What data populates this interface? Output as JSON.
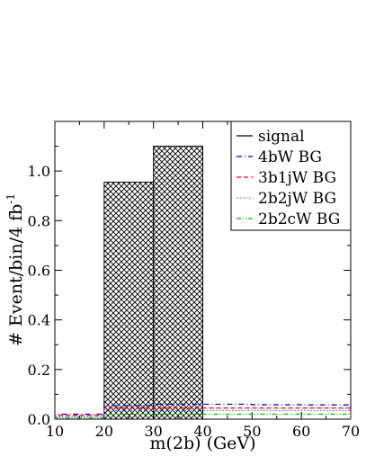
{
  "chart_data": {
    "type": "bar",
    "title": "",
    "xlabel": "m(2b) (GeV)",
    "ylabel_main": "# Event/bin/4 fb",
    "ylabel_sup": "-1",
    "xlim": [
      10,
      70
    ],
    "ylim": [
      0,
      1.2
    ],
    "xticks": [
      10,
      20,
      30,
      40,
      50,
      60,
      70
    ],
    "xtick_labels": [
      "10",
      "20",
      "30",
      "40",
      "50",
      "60",
      "70"
    ],
    "yticks": [
      0,
      0.2,
      0.4,
      0.6,
      0.8,
      1.0
    ],
    "ytick_labels": [
      "0.0",
      "0.2",
      "0.4",
      "0.6",
      "0.8",
      "1.0"
    ],
    "bin_edges": [
      10,
      20,
      30,
      40,
      50,
      60,
      70
    ],
    "grid": false,
    "legend_position": "top-right",
    "series": [
      {
        "name": "signal",
        "color": "#000000",
        "style": "solid-hatched",
        "values": [
          0.0,
          0.955,
          1.1,
          0.0,
          0.0,
          0.0
        ]
      },
      {
        "name": "4bW BG",
        "color": "#0000cc",
        "style": "dash-dot",
        "values": [
          0.02,
          0.055,
          0.06,
          0.06,
          0.058,
          0.057
        ]
      },
      {
        "name": "3b1jW BG",
        "color": "#ff0000",
        "style": "dashed",
        "values": [
          0.015,
          0.045,
          0.045,
          0.045,
          0.045,
          0.045
        ]
      },
      {
        "name": "2b2jW BG",
        "color": "#6666ff",
        "style": "dotted",
        "values": [
          0.01,
          0.035,
          0.035,
          0.035,
          0.035,
          0.035
        ]
      },
      {
        "name": "2b2cW BG",
        "color": "#00bb00",
        "style": "dash-dot-dot",
        "values": [
          0.005,
          0.02,
          0.02,
          0.02,
          0.02,
          0.02
        ]
      }
    ]
  }
}
